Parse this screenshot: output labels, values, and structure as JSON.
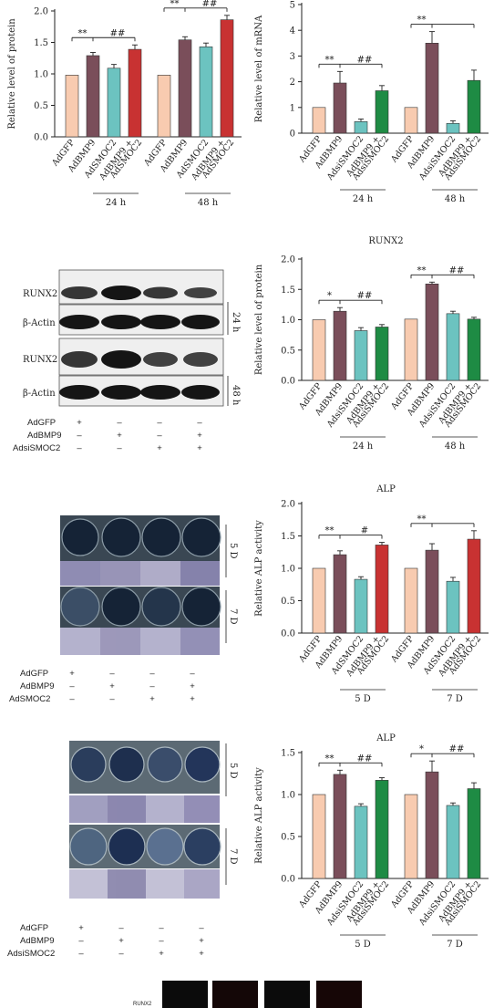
{
  "colors": {
    "AdGFP": "#f8cbb0",
    "AdBMP9": "#7a4e5a",
    "AdSMOC2": "#6cc3c0",
    "AdsiSMOC2": "#6cc3c0",
    "AdBMP9_AdSMOC2": "#c83232",
    "AdBMP9_AdsiSMOC2": "#1e8b44"
  },
  "chart_data": [
    {
      "id": "A_protein",
      "type": "bar",
      "title": "",
      "ylabel": "Relative level of protein",
      "ylim": [
        0,
        2.0
      ],
      "yticks": [
        "0.0",
        "0.5",
        "1.0",
        "1.5",
        "2.0"
      ],
      "categories": [
        "AdGFP",
        "AdBMP9",
        "AdSMOC2",
        "AdBMP9 +\nAdSMOC2"
      ],
      "groups": [
        {
          "label": "24 h",
          "values": [
            0.98,
            1.29,
            1.09,
            1.39
          ],
          "errors": [
            0,
            0.05,
            0.06,
            0.07
          ]
        },
        {
          "label": "48 h",
          "values": [
            0.98,
            1.54,
            1.43,
            1.86
          ],
          "errors": [
            0,
            0.05,
            0.06,
            0.07
          ]
        }
      ],
      "sig": [
        {
          "star": "**",
          "hash": "##"
        },
        {
          "star": "**",
          "hash": "##"
        }
      ],
      "bar_colors": [
        "#f8cbb0",
        "#7a4e5a",
        "#6cc3c0",
        "#c83232"
      ]
    },
    {
      "id": "B_mrna",
      "type": "bar",
      "title": "",
      "ylabel": "Relative level of mRNA",
      "ylim": [
        0,
        5
      ],
      "yticks": [
        "0",
        "1",
        "2",
        "3",
        "4",
        "5"
      ],
      "categories": [
        "AdGFP",
        "AdBMP9",
        "AdsiSMOC2",
        "AdBMP9 +\nAdsiSMOC2"
      ],
      "groups": [
        {
          "label": "24 h",
          "values": [
            1.0,
            1.95,
            0.45,
            1.65
          ],
          "errors": [
            0,
            0.45,
            0.1,
            0.2
          ]
        },
        {
          "label": "48 h",
          "values": [
            1.0,
            3.5,
            0.38,
            2.05
          ],
          "errors": [
            0,
            0.45,
            0.1,
            0.4
          ]
        }
      ],
      "sig": [
        {
          "star": "**",
          "hash": "##"
        },
        {
          "star": "**",
          "hash": ""
        }
      ],
      "bar_colors": [
        "#f8cbb0",
        "#7a4e5a",
        "#6cc3c0",
        "#1e8b44"
      ]
    },
    {
      "id": "C_runx2",
      "type": "bar",
      "title": "RUNX2",
      "ylabel": "Relative level of protein",
      "ylim": [
        0,
        2.0
      ],
      "yticks": [
        "0.0",
        "0.5",
        "1.0",
        "1.5",
        "2.0"
      ],
      "categories": [
        "AdGFP",
        "AdBMP9",
        "AdsiSMOC2",
        "AdBMP9 +\nAdsiSMOC2"
      ],
      "groups": [
        {
          "label": "24 h",
          "values": [
            1.0,
            1.14,
            0.82,
            0.88
          ],
          "errors": [
            0,
            0.06,
            0.05,
            0.04
          ]
        },
        {
          "label": "48 h",
          "values": [
            1.01,
            1.59,
            1.1,
            1.01
          ],
          "errors": [
            0,
            0.03,
            0.04,
            0.03
          ]
        }
      ],
      "sig": [
        {
          "star": "*",
          "hash": "##"
        },
        {
          "star": "**",
          "hash": "##"
        }
      ],
      "bar_colors": [
        "#f8cbb0",
        "#7a4e5a",
        "#6cc3c0",
        "#1e8b44"
      ]
    },
    {
      "id": "D_alp",
      "type": "bar",
      "title": "ALP",
      "ylabel": "Relative ALP activity",
      "ylim": [
        0,
        2.0
      ],
      "yticks": [
        "0.0",
        "0.5",
        "1.0",
        "1.5",
        "2.0"
      ],
      "categories": [
        "AdGFP",
        "AdBMP9",
        "AdSMOC2",
        "AdBMP9 +\nAdSMOC2"
      ],
      "groups": [
        {
          "label": "5 D",
          "values": [
            1.0,
            1.21,
            0.83,
            1.36
          ],
          "errors": [
            0,
            0.06,
            0.04,
            0.04
          ]
        },
        {
          "label": "7 D",
          "values": [
            1.0,
            1.28,
            0.8,
            1.45
          ],
          "errors": [
            0,
            0.1,
            0.06,
            0.13
          ]
        }
      ],
      "sig": [
        {
          "star": "**",
          "hash": "#"
        },
        {
          "star": "**",
          "hash": ""
        }
      ],
      "bar_colors": [
        "#f8cbb0",
        "#7a4e5a",
        "#6cc3c0",
        "#c83232"
      ]
    },
    {
      "id": "E_alp",
      "type": "bar",
      "title": "ALP",
      "ylabel": "Relative ALP activity",
      "ylim": [
        0,
        1.5
      ],
      "yticks": [
        "0.0",
        "0.5",
        "1.0",
        "1.5"
      ],
      "categories": [
        "AdGFP",
        "AdBMP9",
        "AdsiSMOC2",
        "AdBMP9 +\nAdsiSMOC2"
      ],
      "groups": [
        {
          "label": "5 D",
          "values": [
            1.0,
            1.24,
            0.86,
            1.17
          ],
          "errors": [
            0,
            0.05,
            0.03,
            0.03
          ]
        },
        {
          "label": "7 D",
          "values": [
            1.0,
            1.27,
            0.87,
            1.07
          ],
          "errors": [
            0,
            0.13,
            0.03,
            0.07
          ]
        }
      ],
      "sig": [
        {
          "star": "**",
          "hash": "##"
        },
        {
          "star": "*",
          "hash": "##"
        }
      ],
      "bar_colors": [
        "#f8cbb0",
        "#7a4e5a",
        "#6cc3c0",
        "#1e8b44"
      ]
    }
  ],
  "blot": {
    "labels": [
      "RUNX2",
      "β-Actin",
      "RUNX2",
      "β-Actin"
    ],
    "time_labels": [
      "24 h",
      "48 h"
    ]
  },
  "plates_1": {
    "day_labels": [
      "5 D",
      "7 D"
    ]
  },
  "plates_2": {
    "day_labels": [
      "5 D",
      "7 D"
    ]
  },
  "treatments": {
    "names_smoc2": [
      "AdGFP",
      "AdBMP9",
      "AdSMOC2"
    ],
    "names_si": [
      "AdGFP",
      "AdBMP9",
      "AdsiSMOC2"
    ],
    "signs": [
      [
        "+",
        "–",
        "–",
        "–"
      ],
      [
        "–",
        "+",
        "–",
        "+"
      ],
      [
        "–",
        "–",
        "+",
        "+"
      ]
    ]
  },
  "bottom": {
    "label": "RUNX2"
  }
}
